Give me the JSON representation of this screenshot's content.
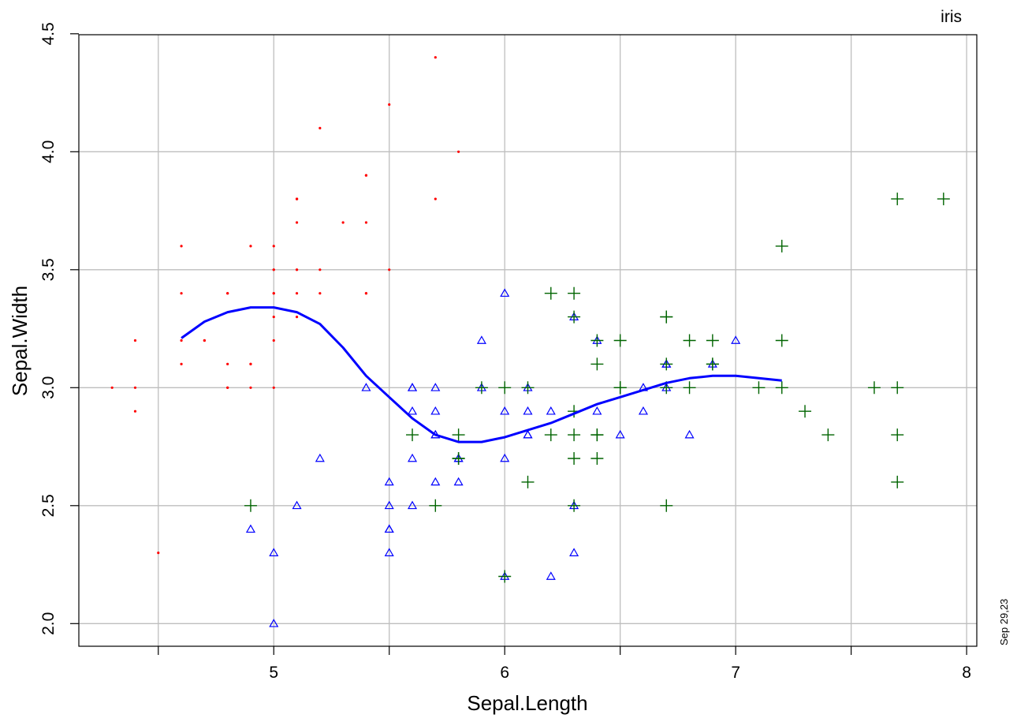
{
  "chart_data": {
    "type": "scatter",
    "title": "iris",
    "date_stamp": "Sep 29,23",
    "xlabel": "Sepal.Length",
    "ylabel": "Sepal.Width",
    "xlim": [
      4.3,
      7.9
    ],
    "ylim": [
      2.0,
      4.4
    ],
    "x_ticks": [
      4.5,
      5,
      5.5,
      6,
      6.5,
      7,
      7.5,
      8
    ],
    "x_tick_labels": [
      "",
      "5",
      "",
      "6",
      "",
      "7",
      "",
      "8"
    ],
    "y_ticks": [
      2.0,
      2.5,
      3.0,
      3.5,
      4.0,
      4.5
    ],
    "y_tick_labels": [
      "2.0",
      "2.5",
      "3.0",
      "3.5",
      "4.0",
      "4.5"
    ],
    "grid": true,
    "colors": {
      "series1": "#ff0000",
      "series2": "#0000ff",
      "series3": "#006400",
      "smooth": "#0000ff",
      "grid": "#bebebe"
    },
    "series": [
      {
        "marker": "dot",
        "color": "#ff0000",
        "points": [
          [
            5.1,
            3.5
          ],
          [
            4.9,
            3.0
          ],
          [
            4.7,
            3.2
          ],
          [
            4.6,
            3.1
          ],
          [
            5.0,
            3.6
          ],
          [
            5.4,
            3.9
          ],
          [
            4.6,
            3.4
          ],
          [
            5.0,
            3.4
          ],
          [
            4.4,
            2.9
          ],
          [
            4.9,
            3.1
          ],
          [
            5.4,
            3.7
          ],
          [
            4.8,
            3.4
          ],
          [
            4.8,
            3.0
          ],
          [
            4.3,
            3.0
          ],
          [
            5.8,
            4.0
          ],
          [
            5.7,
            4.4
          ],
          [
            5.4,
            3.9
          ],
          [
            5.1,
            3.5
          ],
          [
            5.7,
            3.8
          ],
          [
            5.1,
            3.8
          ],
          [
            5.4,
            3.4
          ],
          [
            5.1,
            3.7
          ],
          [
            4.6,
            3.6
          ],
          [
            5.1,
            3.3
          ],
          [
            4.8,
            3.4
          ],
          [
            5.0,
            3.0
          ],
          [
            5.0,
            3.4
          ],
          [
            5.2,
            3.5
          ],
          [
            5.2,
            3.4
          ],
          [
            4.7,
            3.2
          ],
          [
            4.8,
            3.1
          ],
          [
            5.4,
            3.4
          ],
          [
            5.2,
            4.1
          ],
          [
            5.5,
            4.2
          ],
          [
            4.9,
            3.1
          ],
          [
            5.0,
            3.2
          ],
          [
            5.5,
            3.5
          ],
          [
            4.9,
            3.6
          ],
          [
            4.4,
            3.0
          ],
          [
            5.1,
            3.4
          ],
          [
            5.0,
            3.5
          ],
          [
            4.5,
            2.3
          ],
          [
            4.4,
            3.2
          ],
          [
            5.0,
            3.5
          ],
          [
            5.1,
            3.8
          ],
          [
            4.8,
            3.0
          ],
          [
            5.1,
            3.8
          ],
          [
            4.6,
            3.2
          ],
          [
            5.3,
            3.7
          ],
          [
            5.0,
            3.3
          ]
        ]
      },
      {
        "marker": "triangle",
        "color": "#0000ff",
        "points": [
          [
            7.0,
            3.2
          ],
          [
            6.4,
            3.2
          ],
          [
            6.9,
            3.1
          ],
          [
            5.5,
            2.3
          ],
          [
            6.5,
            2.8
          ],
          [
            5.7,
            2.8
          ],
          [
            6.3,
            3.3
          ],
          [
            4.9,
            2.4
          ],
          [
            6.6,
            2.9
          ],
          [
            5.2,
            2.7
          ],
          [
            5.0,
            2.0
          ],
          [
            5.9,
            3.0
          ],
          [
            6.0,
            2.2
          ],
          [
            6.1,
            2.9
          ],
          [
            5.6,
            2.9
          ],
          [
            6.7,
            3.1
          ],
          [
            5.6,
            3.0
          ],
          [
            5.8,
            2.7
          ],
          [
            6.2,
            2.2
          ],
          [
            5.6,
            2.5
          ],
          [
            5.9,
            3.2
          ],
          [
            6.1,
            2.8
          ],
          [
            6.3,
            2.5
          ],
          [
            6.1,
            2.8
          ],
          [
            6.4,
            2.9
          ],
          [
            6.6,
            3.0
          ],
          [
            6.8,
            2.8
          ],
          [
            6.7,
            3.0
          ],
          [
            6.0,
            2.9
          ],
          [
            5.7,
            2.6
          ],
          [
            5.5,
            2.4
          ],
          [
            5.5,
            2.4
          ],
          [
            5.8,
            2.7
          ],
          [
            6.0,
            2.7
          ],
          [
            5.4,
            3.0
          ],
          [
            6.0,
            3.4
          ],
          [
            6.7,
            3.1
          ],
          [
            6.3,
            2.3
          ],
          [
            5.6,
            3.0
          ],
          [
            5.5,
            2.5
          ],
          [
            5.5,
            2.6
          ],
          [
            6.1,
            3.0
          ],
          [
            5.8,
            2.6
          ],
          [
            5.0,
            2.3
          ],
          [
            5.6,
            2.7
          ],
          [
            5.7,
            3.0
          ],
          [
            5.7,
            2.9
          ],
          [
            6.2,
            2.9
          ],
          [
            5.1,
            2.5
          ],
          [
            5.7,
            2.8
          ]
        ]
      },
      {
        "marker": "plus",
        "color": "#006400",
        "points": [
          [
            6.3,
            3.3
          ],
          [
            5.8,
            2.7
          ],
          [
            7.1,
            3.0
          ],
          [
            6.3,
            2.9
          ],
          [
            6.5,
            3.0
          ],
          [
            7.6,
            3.0
          ],
          [
            4.9,
            2.5
          ],
          [
            7.3,
            2.9
          ],
          [
            6.7,
            2.5
          ],
          [
            7.2,
            3.6
          ],
          [
            6.5,
            3.2
          ],
          [
            6.4,
            2.7
          ],
          [
            6.8,
            3.0
          ],
          [
            5.7,
            2.5
          ],
          [
            5.8,
            2.8
          ],
          [
            6.4,
            3.2
          ],
          [
            6.5,
            3.0
          ],
          [
            7.7,
            3.8
          ],
          [
            7.7,
            2.6
          ],
          [
            6.0,
            2.2
          ],
          [
            6.9,
            3.2
          ],
          [
            5.6,
            2.8
          ],
          [
            7.7,
            2.8
          ],
          [
            6.3,
            2.7
          ],
          [
            6.7,
            3.3
          ],
          [
            7.2,
            3.2
          ],
          [
            6.2,
            2.8
          ],
          [
            6.1,
            3.0
          ],
          [
            6.4,
            2.8
          ],
          [
            7.2,
            3.0
          ],
          [
            7.4,
            2.8
          ],
          [
            7.9,
            3.8
          ],
          [
            6.4,
            2.8
          ],
          [
            6.3,
            2.8
          ],
          [
            6.1,
            2.6
          ],
          [
            7.7,
            3.0
          ],
          [
            6.3,
            3.4
          ],
          [
            6.4,
            3.1
          ],
          [
            6.0,
            3.0
          ],
          [
            6.9,
            3.1
          ],
          [
            6.7,
            3.1
          ],
          [
            6.9,
            3.1
          ],
          [
            5.8,
            2.7
          ],
          [
            6.8,
            3.2
          ],
          [
            6.7,
            3.3
          ],
          [
            6.7,
            3.0
          ],
          [
            6.3,
            2.5
          ],
          [
            6.5,
            3.0
          ],
          [
            6.2,
            3.4
          ],
          [
            5.9,
            3.0
          ]
        ]
      }
    ],
    "smooth_line": {
      "color": "#0000ff",
      "points": [
        [
          4.6,
          3.21
        ],
        [
          4.7,
          3.28
        ],
        [
          4.8,
          3.32
        ],
        [
          4.9,
          3.34
        ],
        [
          5.0,
          3.34
        ],
        [
          5.1,
          3.32
        ],
        [
          5.2,
          3.27
        ],
        [
          5.3,
          3.17
        ],
        [
          5.4,
          3.05
        ],
        [
          5.5,
          2.96
        ],
        [
          5.6,
          2.87
        ],
        [
          5.7,
          2.8
        ],
        [
          5.8,
          2.77
        ],
        [
          5.9,
          2.77
        ],
        [
          6.0,
          2.79
        ],
        [
          6.1,
          2.82
        ],
        [
          6.2,
          2.85
        ],
        [
          6.3,
          2.89
        ],
        [
          6.4,
          2.93
        ],
        [
          6.5,
          2.96
        ],
        [
          6.6,
          2.99
        ],
        [
          6.7,
          3.02
        ],
        [
          6.8,
          3.04
        ],
        [
          6.9,
          3.05
        ],
        [
          7.0,
          3.05
        ],
        [
          7.1,
          3.04
        ],
        [
          7.2,
          3.03
        ]
      ]
    }
  }
}
